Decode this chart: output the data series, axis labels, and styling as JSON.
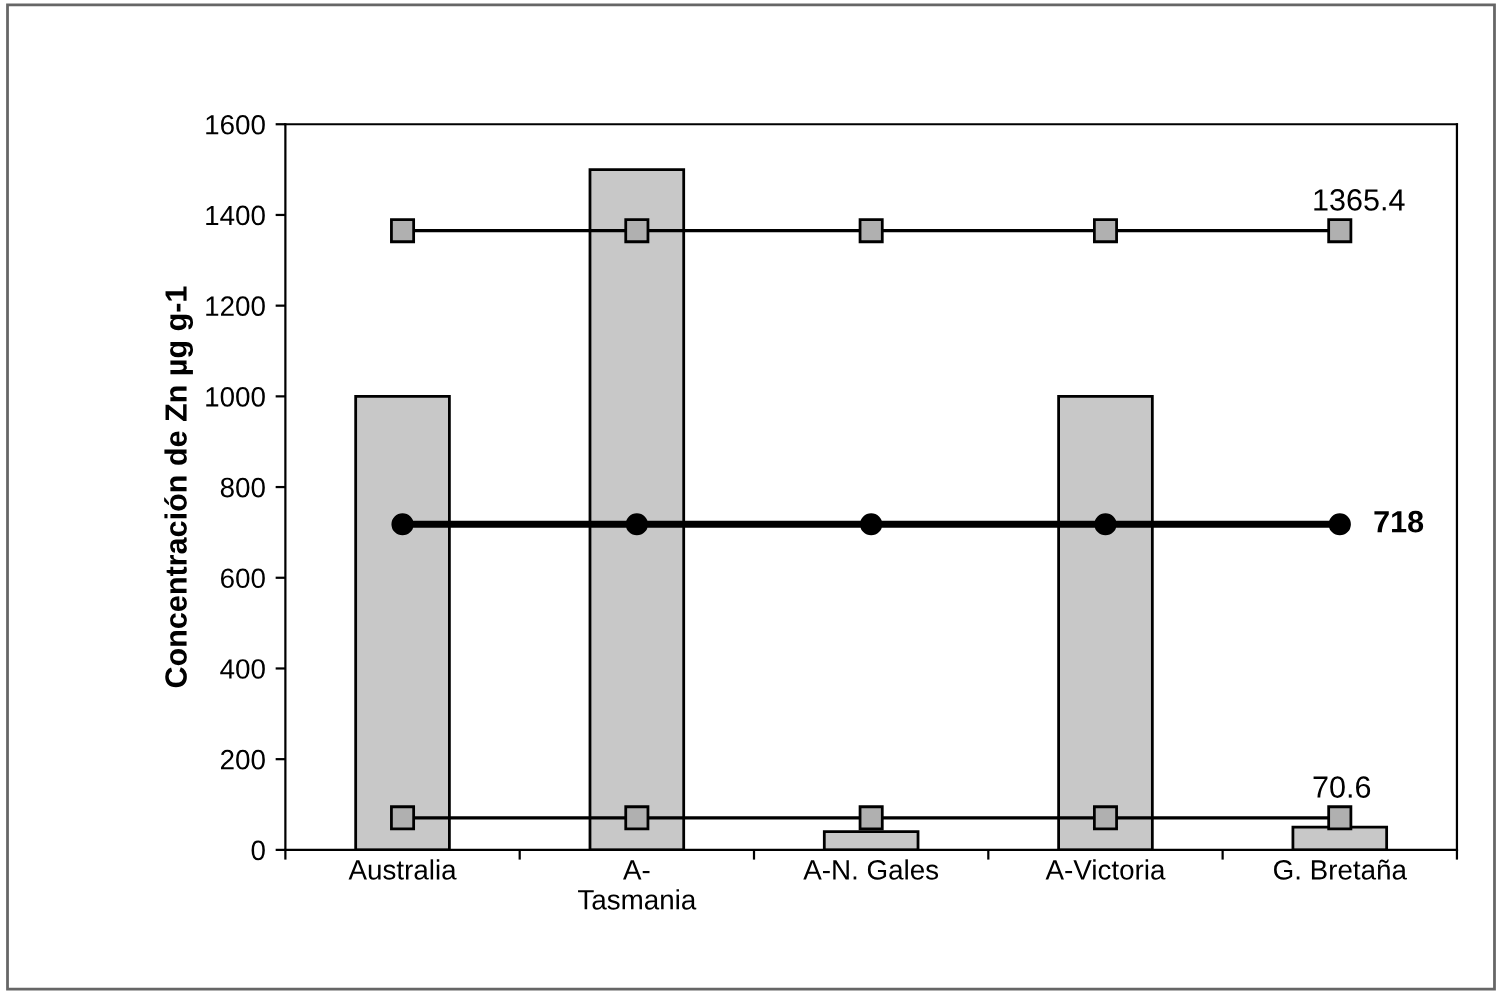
{
  "chart_data": {
    "type": "bar",
    "ylabel": "Concentración de Zn µg g-1",
    "categories": [
      "Australia",
      "A-\nTasmania",
      "A-N. Gales",
      "A-Victoria",
      "G. Bretaña"
    ],
    "ylim": [
      0,
      1600
    ],
    "yticks": [
      0,
      200,
      400,
      600,
      800,
      1000,
      1200,
      1400,
      1600
    ],
    "grid": false,
    "legend": false,
    "series": [
      {
        "color": "#c8c8c8",
        "values": [
          1000,
          1500,
          40,
          1000,
          50
        ]
      },
      {
        "type": "line",
        "color": "#000000",
        "marker": "square",
        "values": [
          1365.4,
          1365.4,
          1365.4,
          1365.4,
          1365.4
        ],
        "value_labels": [
          null,
          null,
          null,
          null,
          "1365.4"
        ]
      },
      {
        "type": "line",
        "color": "#000000",
        "marker": "circle",
        "values": [
          718,
          718,
          718,
          718,
          718
        ],
        "value_labels": [
          null,
          null,
          null,
          null,
          "718"
        ]
      },
      {
        "type": "line",
        "color": "#000000",
        "marker": "square",
        "values": [
          70.6,
          70.6,
          70.6,
          70.6,
          70.6
        ],
        "value_labels": [
          null,
          null,
          null,
          null,
          "70.6"
        ]
      }
    ]
  }
}
